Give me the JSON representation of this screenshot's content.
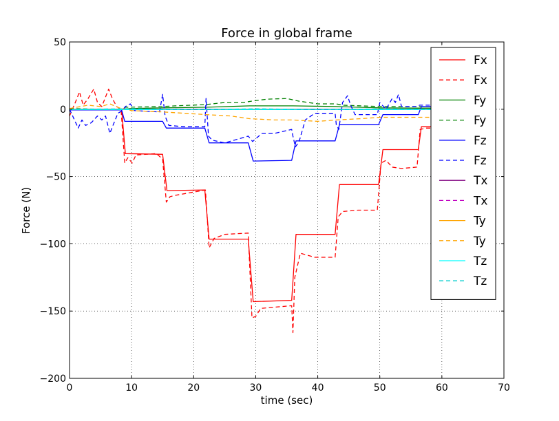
{
  "chart_data": {
    "type": "line",
    "title": "Force in global frame",
    "xlabel": "time (sec)",
    "ylabel": "Force (N)",
    "xlim": [
      0,
      70
    ],
    "ylim": [
      -200,
      50
    ],
    "xticks": [
      0,
      10,
      20,
      30,
      40,
      50,
      60,
      70
    ],
    "yticks": [
      50,
      0,
      -50,
      -100,
      -150,
      -200
    ],
    "xtick_labels": [
      "0",
      "10",
      "20",
      "30",
      "40",
      "50",
      "60",
      "70"
    ],
    "ytick_labels": [
      "50",
      "0",
      "−50",
      "−100",
      "−150",
      "−200"
    ],
    "grid": true,
    "legend_position": "top-right",
    "series": [
      {
        "name": "Fx",
        "color": "#ff0000",
        "style": "solid",
        "points": [
          [
            0,
            -0.2
          ],
          [
            8.4,
            -0.2
          ],
          [
            9.0,
            -33
          ],
          [
            15.0,
            -33.5
          ],
          [
            15.7,
            -60.5
          ],
          [
            21.8,
            -60
          ],
          [
            22.5,
            -96.5
          ],
          [
            28.8,
            -96.5
          ],
          [
            29.6,
            -143
          ],
          [
            35.8,
            -142
          ],
          [
            36.5,
            -93
          ],
          [
            42.8,
            -93
          ],
          [
            43.5,
            -56
          ],
          [
            49.8,
            -56
          ],
          [
            50.5,
            -30
          ],
          [
            56.2,
            -30
          ],
          [
            56.7,
            -13
          ],
          [
            58.5,
            -13
          ]
        ]
      },
      {
        "name": "Fx",
        "color": "#ff0000",
        "style": "dashed",
        "points": [
          [
            0,
            -5
          ],
          [
            1.2,
            8
          ],
          [
            1.6,
            13
          ],
          [
            2.2,
            3
          ],
          [
            3.0,
            8
          ],
          [
            3.9,
            15
          ],
          [
            4.5,
            5
          ],
          [
            5.2,
            2
          ],
          [
            6.3,
            15
          ],
          [
            6.9,
            8
          ],
          [
            7.6,
            2
          ],
          [
            8.3,
            0
          ],
          [
            8.9,
            -40
          ],
          [
            9.4,
            -36
          ],
          [
            10.1,
            -40
          ],
          [
            10.7,
            -34
          ],
          [
            14.0,
            -33
          ],
          [
            15.0,
            -37
          ],
          [
            15.6,
            -69
          ],
          [
            16.2,
            -65
          ],
          [
            17.0,
            -64
          ],
          [
            21.9,
            -60
          ],
          [
            22.5,
            -103
          ],
          [
            23.3,
            -96
          ],
          [
            25.0,
            -93
          ],
          [
            28.8,
            -92
          ],
          [
            29.4,
            -155
          ],
          [
            30.0,
            -154
          ],
          [
            30.8,
            -148
          ],
          [
            35.8,
            -146
          ],
          [
            36.0,
            -166
          ],
          [
            36.3,
            -125
          ],
          [
            37.2,
            -107
          ],
          [
            39.5,
            -110
          ],
          [
            42.8,
            -110
          ],
          [
            43.3,
            -80
          ],
          [
            44.0,
            -76
          ],
          [
            46.5,
            -75
          ],
          [
            49.6,
            -75
          ],
          [
            50.2,
            -40
          ],
          [
            51.0,
            -38
          ],
          [
            52.0,
            -43
          ],
          [
            53.5,
            -44
          ],
          [
            56.0,
            -43
          ],
          [
            56.5,
            -15
          ],
          [
            57.5,
            -14
          ],
          [
            58.5,
            -14
          ]
        ]
      },
      {
        "name": "Fy",
        "color": "#008000",
        "style": "solid",
        "points": [
          [
            0,
            0
          ],
          [
            8,
            0
          ],
          [
            10,
            0.5
          ],
          [
            15,
            1
          ],
          [
            22,
            1.5
          ],
          [
            29,
            2.5
          ],
          [
            36,
            2.5
          ],
          [
            43,
            2
          ],
          [
            50,
            1
          ],
          [
            56,
            0.8
          ],
          [
            58.5,
            0.8
          ]
        ]
      },
      {
        "name": "Fy",
        "color": "#008000",
        "style": "dashed",
        "points": [
          [
            0,
            0.5
          ],
          [
            5,
            0
          ],
          [
            8.4,
            0
          ],
          [
            9,
            1.5
          ],
          [
            15,
            2
          ],
          [
            17,
            2.5
          ],
          [
            22,
            3.5
          ],
          [
            25,
            5
          ],
          [
            28,
            5
          ],
          [
            30,
            6.5
          ],
          [
            32,
            7.5
          ],
          [
            35,
            8
          ],
          [
            37,
            6
          ],
          [
            40,
            4
          ],
          [
            43,
            4
          ],
          [
            44,
            3
          ],
          [
            47,
            2.5
          ],
          [
            50,
            2
          ],
          [
            53,
            2
          ],
          [
            56,
            2
          ],
          [
            58.5,
            2
          ]
        ]
      },
      {
        "name": "Fz",
        "color": "#0000ff",
        "style": "solid",
        "points": [
          [
            0,
            -0.5
          ],
          [
            8.4,
            -0.5
          ],
          [
            8.9,
            -9
          ],
          [
            15.0,
            -9
          ],
          [
            15.6,
            -14
          ],
          [
            21.8,
            -14
          ],
          [
            22.5,
            -25
          ],
          [
            28.8,
            -25
          ],
          [
            29.6,
            -38.5
          ],
          [
            35.8,
            -38
          ],
          [
            36.5,
            -23.5
          ],
          [
            42.8,
            -23.5
          ],
          [
            43.5,
            -11.5
          ],
          [
            49.8,
            -11.5
          ],
          [
            50.5,
            -4
          ],
          [
            56.2,
            -4
          ],
          [
            56.7,
            2
          ],
          [
            58.5,
            2
          ]
        ]
      },
      {
        "name": "Fz",
        "color": "#0000ff",
        "style": "dashed",
        "points": [
          [
            0,
            0
          ],
          [
            0.8,
            -8
          ],
          [
            1.4,
            -14
          ],
          [
            2.0,
            -8
          ],
          [
            2.6,
            -12
          ],
          [
            3.5,
            -10
          ],
          [
            4.5,
            -5
          ],
          [
            5.2,
            -8
          ],
          [
            5.8,
            -5
          ],
          [
            6.5,
            -18
          ],
          [
            7.0,
            -12
          ],
          [
            7.8,
            -3
          ],
          [
            8.5,
            -1
          ],
          [
            9.0,
            2
          ],
          [
            9.8,
            4
          ],
          [
            10.5,
            -1
          ],
          [
            14.5,
            -2
          ],
          [
            15.0,
            11
          ],
          [
            15.4,
            -5
          ],
          [
            16.0,
            -12
          ],
          [
            18.5,
            -13
          ],
          [
            21.8,
            -13
          ],
          [
            22.0,
            8
          ],
          [
            22.4,
            -20
          ],
          [
            23.0,
            -23
          ],
          [
            25.0,
            -25
          ],
          [
            28.8,
            -20
          ],
          [
            29.5,
            -24
          ],
          [
            30.5,
            -20
          ],
          [
            31.0,
            -18
          ],
          [
            33.0,
            -18
          ],
          [
            35.8,
            -15
          ],
          [
            36.0,
            -20
          ],
          [
            36.4,
            -28
          ],
          [
            37.0,
            -24
          ],
          [
            38.0,
            -8
          ],
          [
            39.5,
            -3
          ],
          [
            42.8,
            -3
          ],
          [
            43.0,
            -12
          ],
          [
            43.4,
            -15
          ],
          [
            44.0,
            5
          ],
          [
            44.8,
            10
          ],
          [
            45.3,
            3
          ],
          [
            46.0,
            -4
          ],
          [
            49.6,
            -4
          ],
          [
            50.0,
            5
          ],
          [
            51.0,
            0
          ],
          [
            52.0,
            8
          ],
          [
            52.5,
            5
          ],
          [
            53.0,
            11
          ],
          [
            53.5,
            2
          ],
          [
            56.0,
            2
          ],
          [
            56.4,
            3
          ],
          [
            57.5,
            3
          ],
          [
            58.5,
            3
          ]
        ]
      },
      {
        "name": "Tx",
        "color": "#800080",
        "style": "solid",
        "points": [
          [
            0,
            0
          ],
          [
            58.5,
            0
          ]
        ]
      },
      {
        "name": "Tx",
        "color": "#c000c0",
        "style": "dashed",
        "points": [
          [
            0,
            0
          ],
          [
            58.5,
            0
          ]
        ]
      },
      {
        "name": "Ty",
        "color": "#ffa500",
        "style": "solid",
        "points": [
          [
            0,
            -0.2
          ],
          [
            58.5,
            -0.2
          ]
        ]
      },
      {
        "name": "Ty",
        "color": "#ffa500",
        "style": "dashed",
        "points": [
          [
            0,
            0.5
          ],
          [
            3,
            3
          ],
          [
            5,
            2
          ],
          [
            6.5,
            4
          ],
          [
            8,
            1
          ],
          [
            10,
            -1
          ],
          [
            15,
            -2
          ],
          [
            22,
            -4
          ],
          [
            26,
            -5
          ],
          [
            29,
            -7
          ],
          [
            33,
            -8
          ],
          [
            36,
            -8
          ],
          [
            40,
            -9
          ],
          [
            43,
            -8
          ],
          [
            47,
            -7
          ],
          [
            50,
            -6
          ],
          [
            53,
            -6
          ],
          [
            56,
            -6
          ],
          [
            58.5,
            -6
          ]
        ]
      },
      {
        "name": "Tz",
        "color": "#00ffff",
        "style": "solid",
        "points": [
          [
            0,
            -0.3
          ],
          [
            58.5,
            -0.3
          ]
        ]
      },
      {
        "name": "Tz",
        "color": "#00cccc",
        "style": "dashed",
        "points": [
          [
            0,
            0
          ],
          [
            10,
            0.3
          ],
          [
            20,
            -0.3
          ],
          [
            30,
            0.3
          ],
          [
            40,
            -0.2
          ],
          [
            50,
            0.2
          ],
          [
            58.5,
            0
          ]
        ]
      }
    ]
  }
}
